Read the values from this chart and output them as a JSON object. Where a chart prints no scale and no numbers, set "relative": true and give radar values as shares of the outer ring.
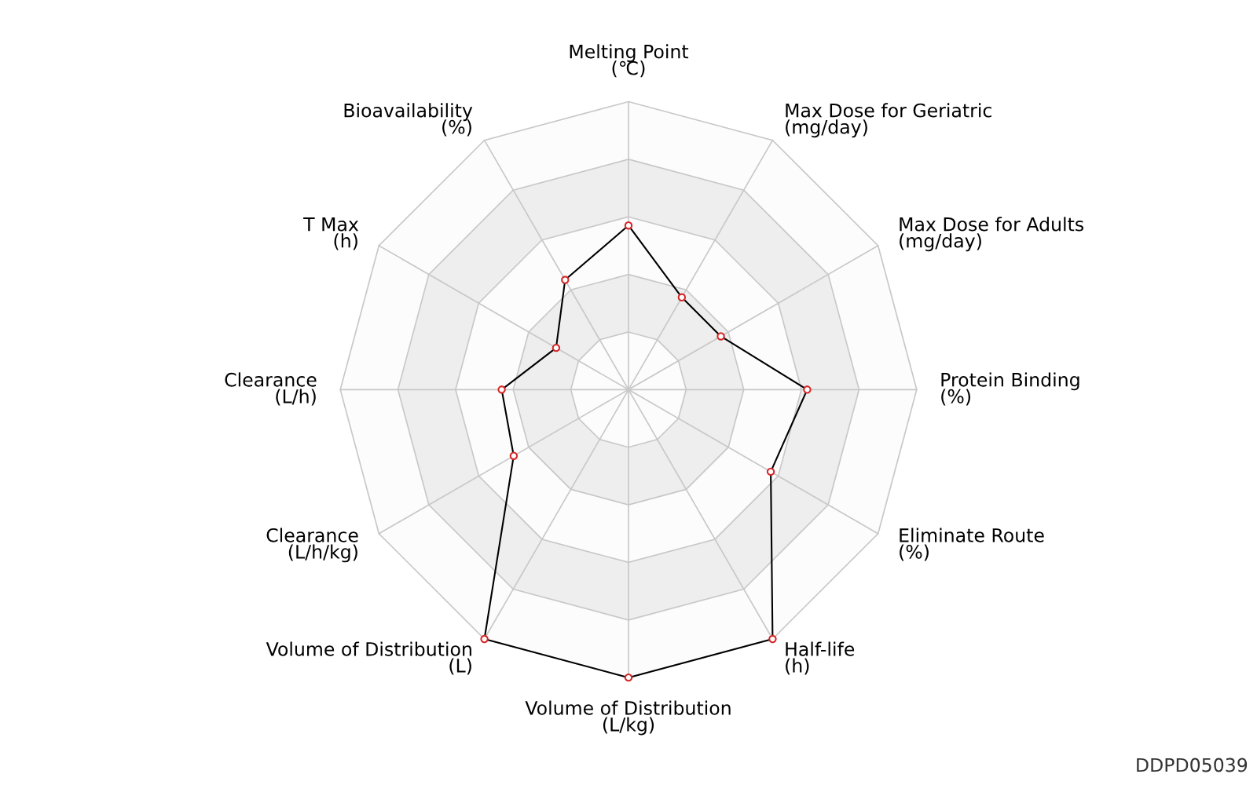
{
  "chart_data": {
    "type": "radar",
    "relative": true,
    "grid": true,
    "marker": "circle",
    "line_style": "solid",
    "categories": [
      "Melting Point\n(℃)",
      "Max Dose for Geriatric\n(mg/day)",
      "Max Dose for Adults\n(mg/day)",
      "Protein Binding\n(%)",
      "Eliminate Route\n(%)",
      "Half-life\n(h)",
      "Volume of Distribution\n(L/kg)",
      "Volume of Distribution\n(L)",
      "Clearance\n(L/h/kg)",
      "Clearance\n(L/h)",
      "T Max\n(h)",
      "Bioavailability\n(%)"
    ],
    "series": [
      {
        "color": "#000000",
        "values": [
          0.57,
          0.37,
          0.37,
          0.62,
          0.57,
          1.0,
          1.0,
          1.0,
          0.46,
          0.44,
          0.29,
          0.44
        ]
      }
    ],
    "annotations": [
      "DDPD05039"
    ]
  }
}
